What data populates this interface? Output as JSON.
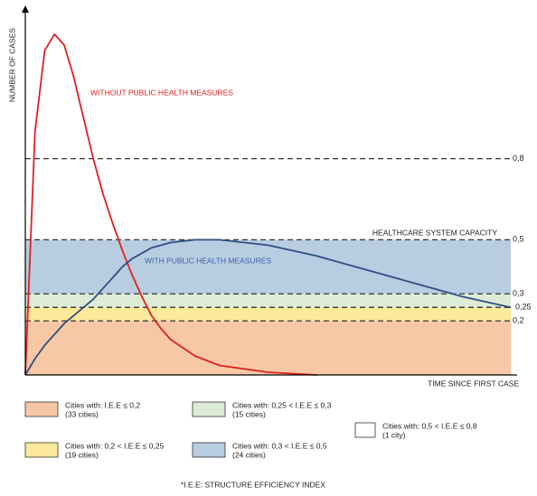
{
  "chart_data": {
    "type": "line",
    "y_label": "NUMBER OF CASES",
    "x_label": "TIME SINCE FIRST CASE",
    "capacity_label": "HEALTHCARE SYSTEM CAPACITY",
    "footnote": "*I.E.E: STRUCTURE EFFICIENCY INDEX",
    "xlim": [
      0,
      100
    ],
    "ylim": [
      0,
      1.36
    ],
    "yticks": [
      {
        "value": 0.2,
        "label": "0,2"
      },
      {
        "value": 0.25,
        "label": "0,25"
      },
      {
        "value": 0.3,
        "label": "0,3"
      },
      {
        "value": 0.5,
        "label": "0,5"
      },
      {
        "value": 0.8,
        "label": "0,8"
      }
    ],
    "x": [
      0,
      2,
      4,
      6,
      8,
      10,
      12,
      14,
      16,
      18,
      20,
      22,
      24,
      26,
      28,
      30,
      35,
      40,
      50,
      60,
      70,
      80,
      90,
      100
    ],
    "series": [
      {
        "name": "WITHOUT PUBLIC HEALTH MEASURES",
        "color": "#e02020",
        "values": [
          0,
          0.9,
          1.2,
          1.26,
          1.22,
          1.1,
          0.95,
          0.8,
          0.67,
          0.56,
          0.46,
          0.37,
          0.29,
          0.22,
          0.17,
          0.13,
          0.07,
          0.035,
          0.01,
          0,
          null,
          null,
          null,
          null
        ]
      },
      {
        "name": "WITH PUBLIC HEALTH MEASURES",
        "color": "#2f4f80",
        "values": [
          0,
          0.06,
          0.11,
          0.15,
          0.19,
          0.22,
          0.25,
          0.28,
          0.32,
          0.36,
          0.4,
          0.43,
          0.45,
          0.47,
          0.48,
          0.49,
          0.5,
          0.5,
          0.48,
          0.44,
          0.39,
          0.34,
          0.29,
          0.25
        ]
      }
    ],
    "bands": [
      {
        "from": 0,
        "to": 0.2,
        "color": "#f8c8a6",
        "label": "Cities with: I.E.E ≤ 0,2",
        "count": "(33 cities)"
      },
      {
        "from": 0.25,
        "to": 0.3,
        "color": "#dcecd6",
        "label": "Cities with: 0,25 < I.E.E ≤ 0,3",
        "count": "(15 cities)"
      },
      {
        "from": 0.5,
        "to": 0.8,
        "color": "#ffffff",
        "label": "Cities with: 0,5 < I.E.E ≤ 0,8",
        "count": "(1 city)"
      },
      {
        "from": 0.2,
        "to": 0.25,
        "color": "#fde99c",
        "label": "Cities with: 0,2 < I.E.E ≤ 0,25",
        "count": "(19 cities)"
      },
      {
        "from": 0.3,
        "to": 0.5,
        "color": "#b8cde2",
        "label": "Cities with: 0,3 < I.E.E ≤ 0,5",
        "count": "(24 cities)"
      }
    ]
  }
}
